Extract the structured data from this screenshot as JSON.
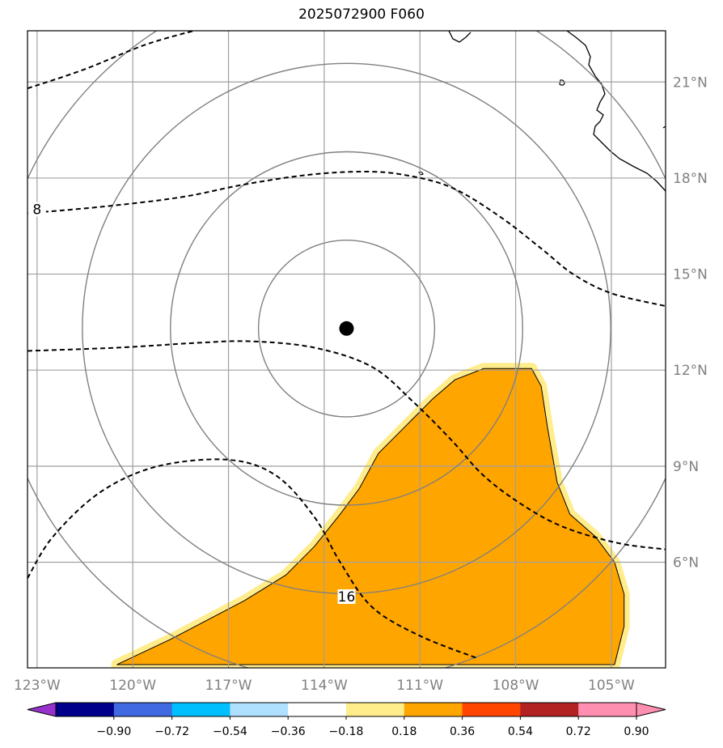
{
  "chart_data": {
    "type": "map",
    "title": "2025072900 F060",
    "projection": "lat-lon",
    "xlim": [
      -123.3,
      -103.3
    ],
    "ylim": [
      2.7,
      22.6
    ],
    "grid": true,
    "x_ticks": [
      {
        "value": -123,
        "label": "123°W"
      },
      {
        "value": -120,
        "label": "120°W"
      },
      {
        "value": -117,
        "label": "117°W"
      },
      {
        "value": -114,
        "label": "114°W"
      },
      {
        "value": -111,
        "label": "111°W"
      },
      {
        "value": -108,
        "label": "108°W"
      },
      {
        "value": -105,
        "label": "105°W"
      }
    ],
    "y_ticks": [
      {
        "value": 6,
        "label": "6°N"
      },
      {
        "value": 9,
        "label": "9°N"
      },
      {
        "value": 12,
        "label": "12°N"
      },
      {
        "value": 15,
        "label": "15°N"
      },
      {
        "value": 18,
        "label": "18°N"
      },
      {
        "value": 21,
        "label": "21°N"
      }
    ],
    "storm_center": {
      "lon": -113.3,
      "lat": 13.3
    },
    "range_rings_deg": [
      2.76,
      5.52,
      8.28,
      11.04
    ],
    "fill_region": {
      "color": "#ffa500",
      "edge_color": "#ffec8b",
      "value_range": [
        0.36,
        0.54
      ],
      "outline": [
        [
          -120.5,
          2.8
        ],
        [
          -118.8,
          3.6
        ],
        [
          -116.5,
          4.8
        ],
        [
          -115.2,
          5.6
        ],
        [
          -114.3,
          6.5
        ],
        [
          -113.5,
          7.5
        ],
        [
          -112.9,
          8.3
        ],
        [
          -112.3,
          9.4
        ],
        [
          -111.4,
          10.3
        ],
        [
          -110.6,
          11.1
        ],
        [
          -109.9,
          11.7
        ],
        [
          -109.0,
          12.05
        ],
        [
          -107.5,
          12.05
        ],
        [
          -107.2,
          11.5
        ],
        [
          -107.0,
          10.2
        ],
        [
          -106.7,
          8.5
        ],
        [
          -106.3,
          7.5
        ],
        [
          -105.5,
          6.8
        ],
        [
          -104.9,
          6.0
        ],
        [
          -104.6,
          5.0
        ],
        [
          -104.6,
          4.0
        ],
        [
          -104.9,
          2.8
        ]
      ]
    },
    "contours": [
      {
        "style": "dashed",
        "label": "",
        "points": [
          [
            -123.3,
            20.8
          ],
          [
            -121.5,
            21.4
          ],
          [
            -119.5,
            22.2
          ],
          [
            -117.3,
            22.8
          ]
        ]
      },
      {
        "style": "dashed",
        "label": "8",
        "label_at": [
          -123.0,
          17.0
        ],
        "points": [
          [
            -123.3,
            16.9
          ],
          [
            -121.0,
            17.1
          ],
          [
            -118.5,
            17.4
          ],
          [
            -116.5,
            17.8
          ],
          [
            -114.5,
            18.1
          ],
          [
            -112.8,
            18.2
          ],
          [
            -111.5,
            18.1
          ],
          [
            -110.0,
            17.7
          ],
          [
            -108.5,
            16.8
          ],
          [
            -107.2,
            15.8
          ],
          [
            -106.2,
            15.0
          ],
          [
            -105.0,
            14.4
          ],
          [
            -103.3,
            14.0
          ]
        ]
      },
      {
        "style": "dashed",
        "label": "",
        "points": [
          [
            -123.3,
            12.6
          ],
          [
            -120.5,
            12.7
          ],
          [
            -118.0,
            12.85
          ],
          [
            -116.3,
            12.9
          ],
          [
            -114.3,
            12.7
          ],
          [
            -112.5,
            12.1
          ],
          [
            -111.2,
            11.0
          ],
          [
            -110.0,
            9.8
          ],
          [
            -109.0,
            8.7
          ],
          [
            -107.8,
            7.8
          ],
          [
            -106.5,
            7.1
          ],
          [
            -104.8,
            6.6
          ],
          [
            -103.3,
            6.4
          ]
        ]
      },
      {
        "style": "dashed",
        "label": "16",
        "label_at": [
          -113.3,
          4.9
        ],
        "points": [
          [
            -123.3,
            5.5
          ],
          [
            -122.5,
            6.8
          ],
          [
            -121.0,
            8.2
          ],
          [
            -119.2,
            9.0
          ],
          [
            -117.0,
            9.2
          ],
          [
            -115.5,
            8.7
          ],
          [
            -114.3,
            7.4
          ],
          [
            -113.5,
            6.0
          ],
          [
            -112.5,
            4.6
          ],
          [
            -111.0,
            3.7
          ],
          [
            -109.2,
            3.0
          ]
        ]
      }
    ],
    "colorbar": {
      "orientation": "horizontal",
      "extend": "both",
      "colors": [
        "#9932cc",
        "#00008b",
        "#4169e1",
        "#00bfff",
        "#b0e0ff",
        "#ffffff",
        "#ffec8b",
        "#ffa500",
        "#ff4500",
        "#b22222",
        "#ff8fb0",
        "#ff8fb0"
      ],
      "tick_labels": [
        "−0.90",
        "−0.72",
        "−0.54",
        "−0.36",
        "−0.18",
        "0.18",
        "0.36",
        "0.54",
        "0.72",
        "0.90"
      ]
    }
  }
}
